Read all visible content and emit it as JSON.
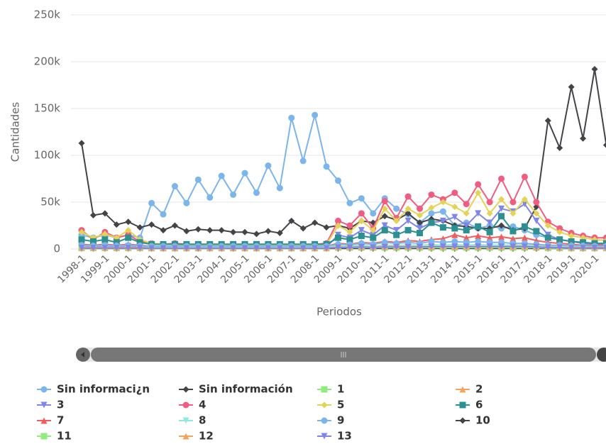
{
  "chart_data": {
    "type": "line",
    "y_axis_label": "Cantidades",
    "x_axis_label": "Periodos",
    "categories": [
      "1998-1",
      null,
      "1999-1",
      null,
      "2000-1",
      null,
      "2001-1",
      null,
      "2002-1",
      null,
      "2003-1",
      null,
      "2004-1",
      null,
      "2005-1",
      null,
      "2006-1",
      null,
      "2007-1",
      null,
      "2008-1",
      null,
      "2009-1",
      null,
      "2010-1",
      null,
      "2011-1",
      null,
      "2012-1",
      null,
      "2013-1",
      null,
      "2014-1",
      null,
      "2015-1",
      null,
      "2016-1",
      null,
      "2017-1",
      null,
      "2018-1",
      null,
      "2019-1",
      null,
      "2020-1",
      null
    ],
    "ylim": [
      0,
      250000
    ],
    "yticks": [
      0,
      {
        "value": 50000,
        "label": "50k"
      },
      {
        "value": 100000,
        "label": "100k"
      },
      {
        "value": 150000,
        "label": "150k"
      },
      {
        "value": 200000,
        "label": "200k"
      },
      {
        "value": 250000,
        "label": "250k"
      }
    ],
    "grid": true,
    "legend": "bottom",
    "series": [
      {
        "name": "Sin informaci¿n",
        "color": "#7cb5ec",
        "marker": "circle",
        "values": [
          15000,
          12000,
          15000,
          12000,
          15000,
          12000,
          49000,
          37000,
          67000,
          49000,
          74000,
          55000,
          78000,
          58000,
          81000,
          60000,
          89000,
          65000,
          140000,
          94000,
          143000,
          88000,
          73000,
          49000,
          54000,
          38000,
          54000,
          43000,
          37000,
          28000,
          38000,
          40000,
          25000,
          28000,
          22000,
          25000,
          22000,
          24000,
          20000,
          15000,
          12000,
          10000,
          8000,
          7000,
          6000,
          5000
        ]
      },
      {
        "name": "Sin información",
        "color": "#434348",
        "marker": "diamond",
        "values": [
          113000,
          36000,
          38000,
          26000,
          29000,
          23000,
          26000,
          20000,
          25000,
          19000,
          21000,
          20000,
          20000,
          18000,
          18000,
          16000,
          19000,
          17000,
          30000,
          22000,
          28000,
          23000,
          25000,
          22000,
          30000,
          28000,
          35000,
          31000,
          38000,
          28000,
          32000,
          30000,
          25000,
          24000,
          22000,
          22000,
          25000,
          20000,
          22000,
          45000,
          137000,
          108000,
          173000,
          118000,
          192000,
          111000
        ]
      },
      {
        "name": "1",
        "color": "#90ed7d",
        "marker": "square",
        "values": [
          2000,
          1500,
          2500,
          1500,
          2000,
          1500,
          1000,
          1000,
          1000,
          1000,
          1000,
          1000,
          1000,
          1000,
          1000,
          1000,
          1000,
          1000,
          1000,
          1000,
          1000,
          1000,
          2000,
          1500,
          2000,
          1500,
          2000,
          1500,
          2000,
          2000,
          2000,
          2000,
          2000,
          2000,
          2000,
          2000,
          2000,
          2000,
          2000,
          2000,
          1500,
          1500,
          1000,
          1000,
          1000,
          1000
        ]
      },
      {
        "name": "2",
        "color": "#f7a35c",
        "marker": "triangle",
        "values": [
          3000,
          2500,
          3000,
          2500,
          3000,
          2500,
          2000,
          2000,
          2000,
          2000,
          2000,
          2000,
          2000,
          2000,
          2000,
          2000,
          2000,
          2000,
          2000,
          2000,
          2000,
          2000,
          3000,
          3000,
          3500,
          3000,
          4000,
          3500,
          4000,
          4000,
          4500,
          4000,
          4500,
          4000,
          4500,
          4000,
          4000,
          4000,
          4000,
          3500,
          3000,
          3000,
          2500,
          2500,
          2000,
          2000
        ]
      },
      {
        "name": "3",
        "color": "#8085e9",
        "marker": "triangle-down",
        "values": [
          3000,
          2500,
          3000,
          2500,
          3000,
          2500,
          2000,
          2000,
          2000,
          2000,
          2000,
          2000,
          2000,
          2000,
          2000,
          2000,
          2000,
          2000,
          2000,
          2000,
          2000,
          2000,
          15000,
          12000,
          20000,
          15000,
          25000,
          20000,
          30000,
          22000,
          28000,
          30000,
          34000,
          25000,
          38000,
          28000,
          43000,
          40000,
          48000,
          30000,
          15000,
          10000,
          8000,
          6000,
          5000,
          5000
        ]
      },
      {
        "name": "4",
        "color": "#f15c80",
        "marker": "circle",
        "values": [
          20000,
          10000,
          18000,
          12000,
          15000,
          8000,
          6000,
          5000,
          6000,
          5000,
          5000,
          5000,
          5000,
          5000,
          5000,
          5000,
          5000,
          5000,
          5000,
          5000,
          5000,
          6000,
          30000,
          25000,
          38000,
          22000,
          51000,
          33000,
          56000,
          43000,
          58000,
          53000,
          60000,
          48000,
          69000,
          50000,
          75000,
          50000,
          77000,
          50000,
          29000,
          22000,
          17000,
          14000,
          12000,
          12000
        ]
      },
      {
        "name": "5",
        "color": "#e4d354",
        "marker": "diamond",
        "values": [
          18000,
          12000,
          16000,
          12000,
          20000,
          10000,
          6000,
          5000,
          5000,
          4000,
          4000,
          4000,
          4000,
          4000,
          4000,
          4000,
          4000,
          4000,
          4000,
          4000,
          4000,
          5000,
          25000,
          18000,
          30000,
          20000,
          43000,
          30000,
          43000,
          36000,
          44000,
          50000,
          45000,
          38000,
          60000,
          38000,
          53000,
          38000,
          53000,
          38000,
          25000,
          18000,
          14000,
          12000,
          10000,
          9000
        ]
      },
      {
        "name": "6",
        "color": "#2b908f",
        "marker": "square",
        "values": [
          10000,
          8000,
          10000,
          7000,
          12000,
          7000,
          5000,
          5000,
          5000,
          5000,
          5000,
          5000,
          5000,
          5000,
          5000,
          5000,
          5000,
          5000,
          5000,
          5000,
          5000,
          5000,
          12000,
          10000,
          14000,
          12000,
          20000,
          15000,
          20000,
          17000,
          28000,
          23000,
          22000,
          20000,
          24000,
          18000,
          35000,
          19000,
          24000,
          19000,
          12000,
          10000,
          8000,
          7000,
          6000,
          6000
        ]
      },
      {
        "name": "7",
        "color": "#f45b5b",
        "marker": "triangle",
        "values": [
          5000,
          4000,
          5000,
          4000,
          5000,
          4000,
          3000,
          3000,
          3000,
          3000,
          3000,
          3000,
          3000,
          3000,
          3000,
          3000,
          3000,
          3000,
          3000,
          3000,
          3000,
          3000,
          6000,
          5000,
          7000,
          6000,
          8000,
          7000,
          9000,
          8000,
          10000,
          11000,
          15000,
          12000,
          14000,
          12000,
          13000,
          11000,
          12000,
          9000,
          7000,
          6000,
          5000,
          4000,
          4000,
          4000
        ]
      },
      {
        "name": "8",
        "color": "#91e8e1",
        "marker": "triangle-down",
        "values": [
          2000,
          1500,
          2000,
          1500,
          2000,
          1500,
          1500,
          1500,
          1500,
          1500,
          1500,
          1500,
          1500,
          1500,
          1500,
          1500,
          1500,
          1500,
          1500,
          1500,
          1500,
          1500,
          3000,
          3000,
          4000,
          3000,
          4000,
          3500,
          4000,
          4000,
          4500,
          4000,
          4500,
          4000,
          4000,
          4000,
          4000,
          3500,
          3500,
          3000,
          2500,
          2500,
          2000,
          2000,
          2000,
          2000
        ]
      },
      {
        "name": "9",
        "color": "#7cb5ec",
        "marker": "circle",
        "values": [
          4000,
          3500,
          4000,
          3500,
          4000,
          3500,
          3000,
          3000,
          3000,
          3000,
          3000,
          3000,
          3000,
          3000,
          3000,
          3000,
          3000,
          3000,
          3000,
          3000,
          3000,
          3000,
          5000,
          4500,
          6000,
          5000,
          7000,
          6000,
          7000,
          6000,
          8000,
          7000,
          8000,
          7000,
          8000,
          7000,
          7000,
          6000,
          6000,
          5000,
          4000,
          4000,
          3500,
          3500,
          3000,
          3000
        ]
      },
      {
        "name": "10",
        "color": "#434348",
        "marker": "diamond",
        "values": [
          500,
          500,
          500,
          500,
          500,
          500,
          500,
          500,
          500,
          500,
          500,
          500,
          500,
          500,
          500,
          500,
          500,
          500,
          500,
          500,
          500,
          500,
          500,
          500,
          500,
          500,
          500,
          500,
          500,
          500,
          500,
          500,
          500,
          500,
          500,
          500,
          500,
          500,
          500,
          500,
          500,
          500,
          500,
          500,
          500,
          500
        ]
      },
      {
        "name": "11",
        "color": "#90ed7d",
        "marker": "square",
        "values": [
          1000,
          1000,
          1000,
          1000,
          1000,
          1000,
          1000,
          1000,
          1000,
          1000,
          1000,
          1000,
          1000,
          1000,
          1000,
          1000,
          1000,
          1000,
          1000,
          1000,
          1000,
          1000,
          1500,
          1500,
          1500,
          1500,
          1500,
          1500,
          1500,
          1500,
          1500,
          1500,
          1500,
          1500,
          1500,
          1500,
          1500,
          1500,
          1500,
          1500,
          1000,
          1000,
          1000,
          1000,
          1000,
          1000
        ]
      },
      {
        "name": "12",
        "color": "#f7a35c",
        "marker": "triangle",
        "values": [
          1500,
          1500,
          1500,
          1500,
          1500,
          1500,
          1000,
          1000,
          1000,
          1000,
          1000,
          1000,
          1000,
          1000,
          1000,
          1000,
          1000,
          1000,
          1000,
          1000,
          1000,
          1000,
          2000,
          2000,
          2000,
          2000,
          2500,
          2500,
          2500,
          2500,
          2500,
          2500,
          2500,
          2500,
          2500,
          2500,
          2500,
          2500,
          2500,
          2000,
          2000,
          1500,
          1500,
          1500,
          1500,
          1500
        ]
      },
      {
        "name": "13",
        "color": "#8085e9",
        "marker": "triangle-down",
        "values": [
          1000,
          1000,
          1000,
          1000,
          1000,
          1000,
          800,
          800,
          800,
          800,
          800,
          800,
          800,
          800,
          800,
          800,
          800,
          800,
          800,
          800,
          800,
          800,
          1500,
          1500,
          2000,
          1500,
          2000,
          2000,
          2000,
          2000,
          2500,
          2500,
          2500,
          2500,
          2500,
          2500,
          2500,
          2500,
          2500,
          2000,
          1500,
          1500,
          1000,
          1000,
          1000,
          1000
        ]
      }
    ]
  }
}
